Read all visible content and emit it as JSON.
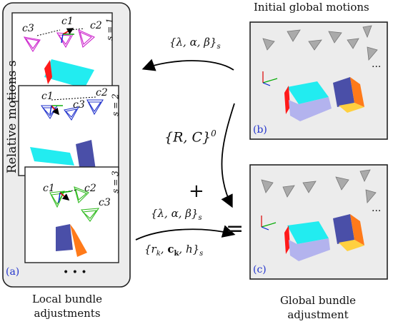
{
  "left_group": {
    "vertical_label": "Relative motions s",
    "dots": "• • •",
    "tag": "(a)",
    "caption": [
      "Local bundle",
      "adjustments"
    ],
    "frames": [
      {
        "s_label": "s = 1",
        "cams": [
          "c3",
          "c1",
          "c2"
        ]
      },
      {
        "s_label": "s = 2",
        "cams": [
          "c1",
          "c3",
          "c2"
        ]
      },
      {
        "s_label": "s = 3",
        "cams": [
          "c1",
          "c2",
          "c3"
        ]
      }
    ]
  },
  "right_group": {
    "title": "Initial global motions",
    "top_tag": "(b)",
    "bottom_tag": "(c)",
    "dots": "...",
    "caption": [
      "Global bundle",
      "adjustment"
    ]
  },
  "center": {
    "arrow_label_top": "{λ, α, β}",
    "arrow_label_top_sub": "s",
    "initial_label": "{R, C}",
    "initial_sup": "0",
    "plus": "+",
    "equals": "=",
    "bottom_label_1": "{λ, α, β}",
    "bottom_label_1_sub": "s",
    "bottom_label_2_a": "{r",
    "bottom_label_2_k": "k",
    "bottom_label_2_c": "c",
    "bottom_label_2_ck": "k",
    "bottom_label_2_b": ", h}",
    "bottom_label_2_sub": "s"
  }
}
